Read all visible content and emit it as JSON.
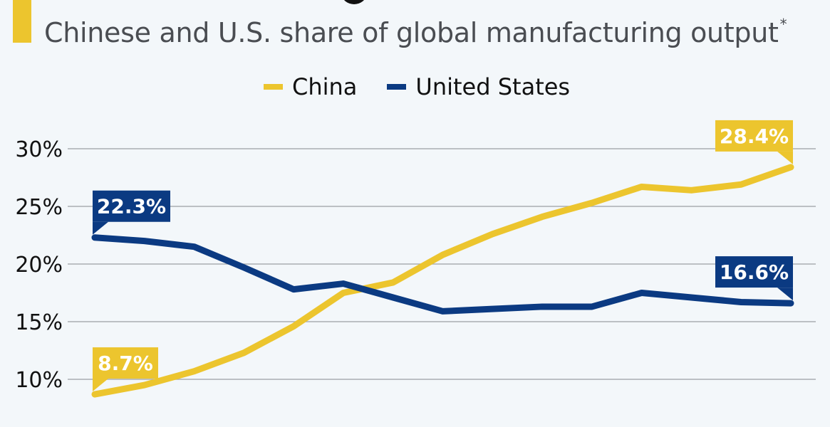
{
  "header": {
    "subtitle": "Chinese and U.S. share of global manufacturing output",
    "footnote_marker": "*"
  },
  "colors": {
    "china": "#ecc52e",
    "united_states": "#0b3a82",
    "background": "#f3f7fa",
    "grid": "#a9adb2"
  },
  "chart_data": {
    "type": "line",
    "title": "",
    "subtitle": "Chinese and U.S. share of global manufacturing output*",
    "xlabel": "",
    "ylabel": "",
    "x": [
      1,
      2,
      3,
      4,
      5,
      6,
      7,
      8,
      9,
      10,
      11,
      12,
      13,
      14,
      15
    ],
    "ylim": [
      10,
      30
    ],
    "yticks": [
      10,
      15,
      20,
      25,
      30
    ],
    "ytick_labels": [
      "10%",
      "15%",
      "20%",
      "25%",
      "30%"
    ],
    "grid": true,
    "legend_position": "top-center",
    "series": [
      {
        "name": "China",
        "color": "#ecc52e",
        "values": [
          8.7,
          9.5,
          10.7,
          12.3,
          14.6,
          17.5,
          18.4,
          20.8,
          22.6,
          24.1,
          25.3,
          26.7,
          26.4,
          26.9,
          28.4
        ],
        "annotations": [
          {
            "index": 0,
            "label": "8.7%",
            "position": "above"
          },
          {
            "index": 14,
            "label": "28.4%",
            "position": "above-left"
          }
        ]
      },
      {
        "name": "United States",
        "color": "#0b3a82",
        "values": [
          22.3,
          22.0,
          21.5,
          19.7,
          17.8,
          18.3,
          17.1,
          15.9,
          16.1,
          16.3,
          16.3,
          17.5,
          17.1,
          16.7,
          16.6
        ],
        "annotations": [
          {
            "index": 0,
            "label": "22.3%",
            "position": "above"
          },
          {
            "index": 14,
            "label": "16.6%",
            "position": "above-left"
          }
        ]
      }
    ]
  }
}
